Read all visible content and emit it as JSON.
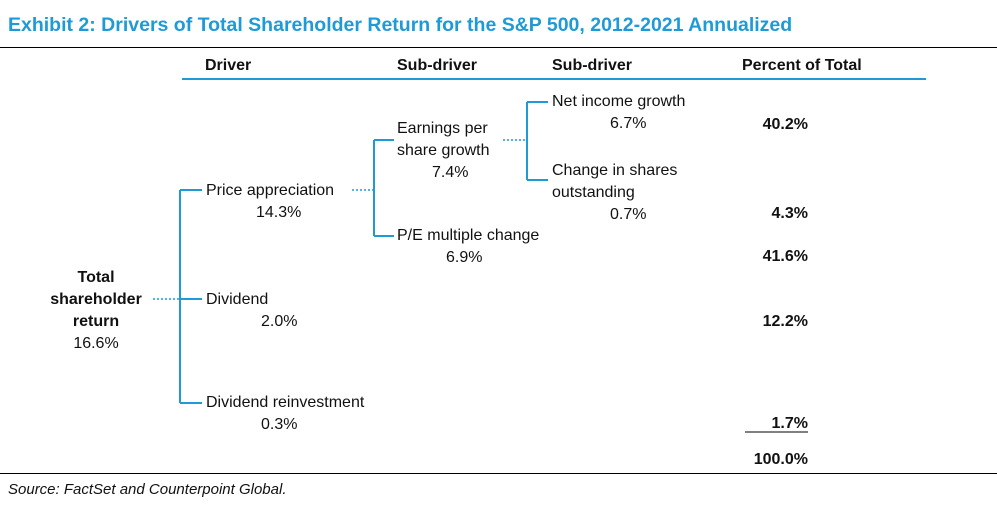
{
  "title": "Exhibit 2: Drivers of Total Shareholder Return for the S&P 500, 2012-2021 Annualized",
  "headers": {
    "driver": "Driver",
    "sub_driver_1": "Sub-driver",
    "sub_driver_2": "Sub-driver",
    "percent_of_total": "Percent of Total"
  },
  "root": {
    "line1": "Total",
    "line2": "shareholder",
    "line3": "return",
    "value": "16.6%"
  },
  "drivers": {
    "price_appreciation": {
      "label": "Price appreciation",
      "value": "14.3%"
    },
    "dividend": {
      "label": "Dividend",
      "value": "2.0%"
    },
    "dividend_reinvestment": {
      "label": "Dividend reinvestment",
      "value": "0.3%"
    }
  },
  "sub_drivers": {
    "eps_growth": {
      "line1": "Earnings per",
      "line2": "share growth",
      "value": "7.4%"
    },
    "pe_change": {
      "label": "P/E multiple change",
      "value": "6.9%"
    }
  },
  "sub_sub_drivers": {
    "net_income_growth": {
      "label": "Net income growth",
      "value": "6.7%"
    },
    "shares_outstanding": {
      "line1": "Change in shares",
      "line2": "outstanding",
      "value": "0.7%"
    }
  },
  "percents": {
    "net_income_growth": "40.2%",
    "shares_outstanding": "4.3%",
    "pe_change": "41.6%",
    "dividend": "12.2%",
    "dividend_reinvestment": "1.7%",
    "total": "100.0%"
  },
  "source": "Source: FactSet and Counterpoint Global.",
  "colors": {
    "accent": "#1E9BD7",
    "text": "#111111"
  }
}
